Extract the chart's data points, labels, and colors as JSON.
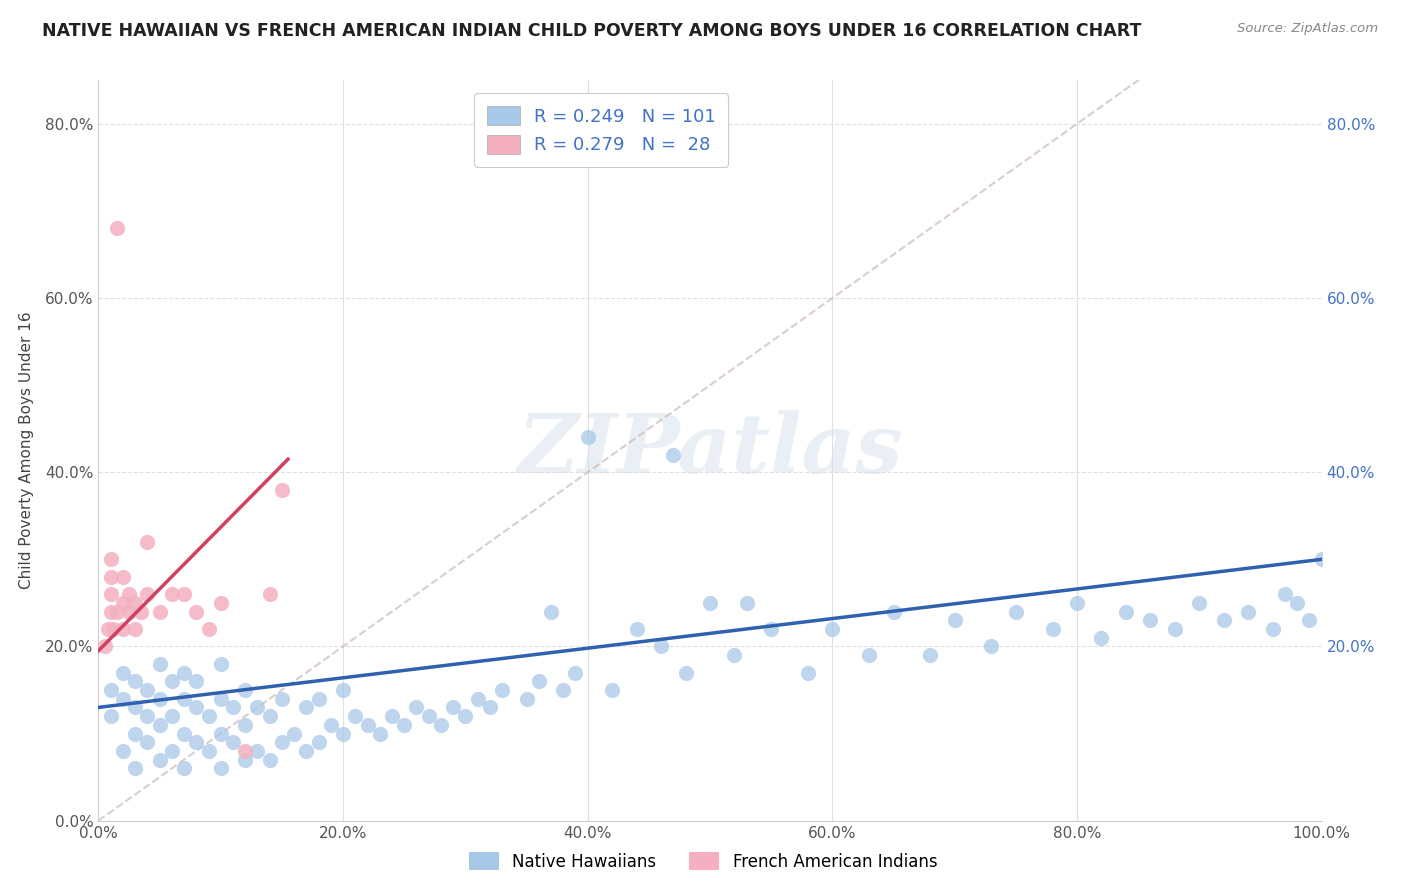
{
  "title": "NATIVE HAWAIIAN VS FRENCH AMERICAN INDIAN CHILD POVERTY AMONG BOYS UNDER 16 CORRELATION CHART",
  "source": "Source: ZipAtlas.com",
  "ylabel": "Child Poverty Among Boys Under 16",
  "xlim": [
    0.0,
    1.0
  ],
  "ylim": [
    0.0,
    0.85
  ],
  "xticks": [
    0.0,
    0.2,
    0.4,
    0.6,
    0.8,
    1.0
  ],
  "xticklabels": [
    "0.0%",
    "20.0%",
    "40.0%",
    "60.0%",
    "80.0%",
    "100.0%"
  ],
  "yticks": [
    0.0,
    0.2,
    0.4,
    0.6,
    0.8
  ],
  "yticklabels": [
    "0.0%",
    "20.0%",
    "40.0%",
    "60.0%",
    "80.0%"
  ],
  "right_yticklabels": [
    "20.0%",
    "40.0%",
    "60.0%",
    "80.0%"
  ],
  "right_yticks": [
    0.2,
    0.4,
    0.6,
    0.8
  ],
  "legend_R1": "0.249",
  "legend_N1": "101",
  "legend_R2": "0.279",
  "legend_N2": "28",
  "color_blue": "#a8c8e8",
  "color_pink": "#f4b0c0",
  "color_text_blue": "#4472C4",
  "color_trend_blue": "#3060b0",
  "color_trend_pink": "#d04060",
  "watermark": "ZIPatlas",
  "bg_color": "#ffffff",
  "grid_color": "#e0e0e0",
  "fig_width": 14.06,
  "fig_height": 8.92,
  "blue_x": [
    0.01,
    0.01,
    0.02,
    0.02,
    0.02,
    0.03,
    0.03,
    0.03,
    0.03,
    0.04,
    0.04,
    0.04,
    0.05,
    0.05,
    0.05,
    0.05,
    0.06,
    0.06,
    0.06,
    0.07,
    0.07,
    0.07,
    0.07,
    0.08,
    0.08,
    0.08,
    0.09,
    0.09,
    0.1,
    0.1,
    0.1,
    0.1,
    0.11,
    0.11,
    0.12,
    0.12,
    0.12,
    0.13,
    0.13,
    0.14,
    0.14,
    0.15,
    0.15,
    0.16,
    0.17,
    0.17,
    0.18,
    0.18,
    0.19,
    0.2,
    0.2,
    0.21,
    0.22,
    0.23,
    0.24,
    0.25,
    0.26,
    0.27,
    0.28,
    0.29,
    0.3,
    0.31,
    0.32,
    0.33,
    0.35,
    0.36,
    0.37,
    0.38,
    0.39,
    0.4,
    0.42,
    0.44,
    0.46,
    0.48,
    0.5,
    0.52,
    0.55,
    0.58,
    0.6,
    0.63,
    0.65,
    0.68,
    0.7,
    0.73,
    0.75,
    0.78,
    0.8,
    0.82,
    0.84,
    0.86,
    0.88,
    0.9,
    0.92,
    0.94,
    0.96,
    0.97,
    0.98,
    0.99,
    1.0,
    0.47,
    0.53
  ],
  "blue_y": [
    0.12,
    0.15,
    0.08,
    0.14,
    0.17,
    0.06,
    0.1,
    0.13,
    0.16,
    0.09,
    0.12,
    0.15,
    0.07,
    0.11,
    0.14,
    0.18,
    0.08,
    0.12,
    0.16,
    0.06,
    0.1,
    0.14,
    0.17,
    0.09,
    0.13,
    0.16,
    0.08,
    0.12,
    0.06,
    0.1,
    0.14,
    0.18,
    0.09,
    0.13,
    0.07,
    0.11,
    0.15,
    0.08,
    0.13,
    0.07,
    0.12,
    0.09,
    0.14,
    0.1,
    0.08,
    0.13,
    0.09,
    0.14,
    0.11,
    0.1,
    0.15,
    0.12,
    0.11,
    0.1,
    0.12,
    0.11,
    0.13,
    0.12,
    0.11,
    0.13,
    0.12,
    0.14,
    0.13,
    0.15,
    0.14,
    0.16,
    0.24,
    0.15,
    0.17,
    0.44,
    0.15,
    0.22,
    0.2,
    0.17,
    0.25,
    0.19,
    0.22,
    0.17,
    0.22,
    0.19,
    0.24,
    0.19,
    0.23,
    0.2,
    0.24,
    0.22,
    0.25,
    0.21,
    0.24,
    0.23,
    0.22,
    0.25,
    0.23,
    0.24,
    0.22,
    0.26,
    0.25,
    0.23,
    0.3,
    0.42,
    0.25
  ],
  "pink_x": [
    0.005,
    0.008,
    0.01,
    0.01,
    0.01,
    0.01,
    0.012,
    0.015,
    0.015,
    0.02,
    0.02,
    0.02,
    0.025,
    0.025,
    0.03,
    0.03,
    0.035,
    0.04,
    0.04,
    0.05,
    0.06,
    0.07,
    0.08,
    0.09,
    0.1,
    0.12,
    0.14,
    0.15
  ],
  "pink_y": [
    0.2,
    0.22,
    0.24,
    0.26,
    0.28,
    0.3,
    0.22,
    0.68,
    0.24,
    0.22,
    0.25,
    0.28,
    0.24,
    0.26,
    0.22,
    0.25,
    0.24,
    0.26,
    0.32,
    0.24,
    0.26,
    0.26,
    0.24,
    0.22,
    0.25,
    0.08,
    0.26,
    0.38
  ],
  "blue_trend_x": [
    0.0,
    1.0
  ],
  "blue_trend_y": [
    0.13,
    0.3
  ],
  "pink_trend_x": [
    0.0,
    0.155
  ],
  "pink_trend_y": [
    0.195,
    0.415
  ]
}
